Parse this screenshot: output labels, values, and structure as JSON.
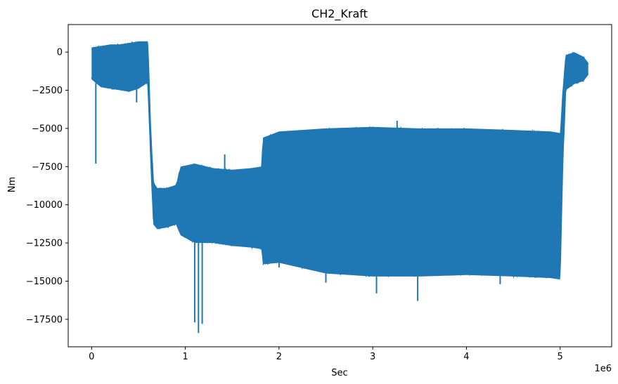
{
  "chart_data": {
    "type": "line",
    "title": "CH2_Kraft",
    "xlabel": "Sec",
    "ylabel": "Nm",
    "x_offset_label": "1e6",
    "xlim": [
      -250000,
      5550000
    ],
    "ylim": [
      -19300,
      1800
    ],
    "x_ticks": [
      {
        "value": 0,
        "label": "0"
      },
      {
        "value": 1000000,
        "label": "1"
      },
      {
        "value": 2000000,
        "label": "2"
      },
      {
        "value": 3000000,
        "label": "3"
      },
      {
        "value": 4000000,
        "label": "4"
      },
      {
        "value": 5000000,
        "label": "5"
      }
    ],
    "y_ticks": [
      {
        "value": 0,
        "label": "0"
      },
      {
        "value": -2500,
        "label": "−2500"
      },
      {
        "value": -5000,
        "label": "−5000"
      },
      {
        "value": -7500,
        "label": "−7500"
      },
      {
        "value": -10000,
        "label": "−10000"
      },
      {
        "value": -12500,
        "label": "−12500"
      },
      {
        "value": -15000,
        "label": "−15000"
      },
      {
        "value": -17500,
        "label": "−17500"
      }
    ],
    "grid": false,
    "legend": "none",
    "series": [
      {
        "color": "#1f77b4",
        "envelope": [
          {
            "x": 0,
            "max": 300,
            "min": -1800
          },
          {
            "x": 100000,
            "max": 400,
            "min": -2300
          },
          {
            "x": 200000,
            "max": 500,
            "min": -2400
          },
          {
            "x": 300000,
            "max": 500,
            "min": -2500
          },
          {
            "x": 400000,
            "max": 600,
            "min": -2600
          },
          {
            "x": 500000,
            "max": 700,
            "min": -2400
          },
          {
            "x": 600000,
            "max": 700,
            "min": -2000
          },
          {
            "x": 630000,
            "max": -5000,
            "min": -7000
          },
          {
            "x": 660000,
            "max": -8500,
            "min": -11300
          },
          {
            "x": 700000,
            "max": -8900,
            "min": -11600
          },
          {
            "x": 800000,
            "max": -8900,
            "min": -11500
          },
          {
            "x": 900000,
            "max": -8700,
            "min": -11300
          },
          {
            "x": 950000,
            "max": -7500,
            "min": -12000
          },
          {
            "x": 1100000,
            "max": -7300,
            "min": -12500
          },
          {
            "x": 1300000,
            "max": -7600,
            "min": -12500
          },
          {
            "x": 1500000,
            "max": -7700,
            "min": -12700
          },
          {
            "x": 1700000,
            "max": -7600,
            "min": -12800
          },
          {
            "x": 1810000,
            "max": -7500,
            "min": -12900
          },
          {
            "x": 1830000,
            "max": -5600,
            "min": -13900
          },
          {
            "x": 2000000,
            "max": -5200,
            "min": -13800
          },
          {
            "x": 2500000,
            "max": -5000,
            "min": -14500
          },
          {
            "x": 3000000,
            "max": -4900,
            "min": -14700
          },
          {
            "x": 3500000,
            "max": -5000,
            "min": -14700
          },
          {
            "x": 4000000,
            "max": -5000,
            "min": -14600
          },
          {
            "x": 4500000,
            "max": -5100,
            "min": -14700
          },
          {
            "x": 4900000,
            "max": -5200,
            "min": -14800
          },
          {
            "x": 5000000,
            "max": -5300,
            "min": -14900
          },
          {
            "x": 5030000,
            "max": -2500,
            "min": -7000
          },
          {
            "x": 5060000,
            "max": -200,
            "min": -2500
          },
          {
            "x": 5150000,
            "max": 0,
            "min": -2100
          },
          {
            "x": 5250000,
            "max": -300,
            "min": -1900
          },
          {
            "x": 5300000,
            "max": -700,
            "min": -1500
          }
        ],
        "spikes": [
          {
            "x": 45000,
            "value": -7300
          },
          {
            "x": 1100000,
            "value": -17700
          },
          {
            "x": 1140000,
            "value": -18400
          },
          {
            "x": 1180000,
            "value": -17800
          },
          {
            "x": 3040000,
            "value": -15800
          },
          {
            "x": 3480000,
            "value": -16300
          },
          {
            "x": 2000000,
            "value": -14100
          },
          {
            "x": 2500000,
            "value": -15100
          },
          {
            "x": 4360000,
            "value": -15200
          },
          {
            "x": 1420000,
            "value": -6700
          },
          {
            "x": 3260000,
            "value": -4500
          },
          {
            "x": 480000,
            "value": -3300
          }
        ]
      }
    ]
  }
}
